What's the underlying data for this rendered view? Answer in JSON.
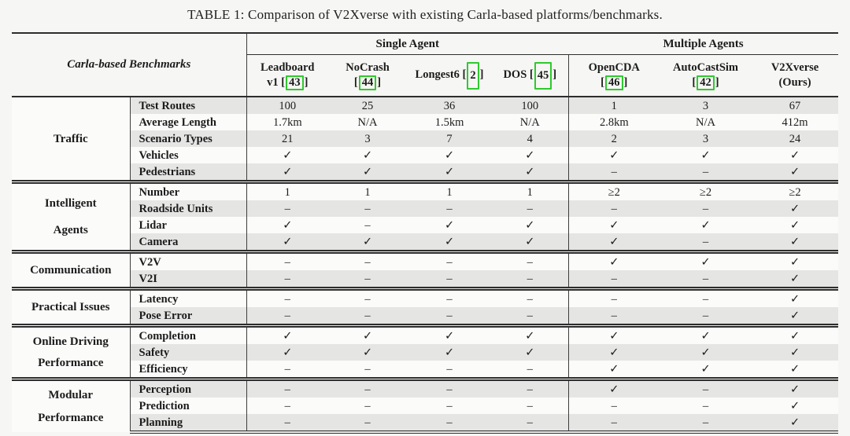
{
  "page": {
    "title": "TABLE 1: Comparison of V2Xverse with existing Carla-based platforms/benchmarks."
  },
  "table": {
    "corner_label": "Carla-based Benchmarks",
    "group_headers": [
      {
        "label": "Single Agent"
      },
      {
        "label": "Multiple Agents"
      }
    ],
    "columns": [
      {
        "line1": "Leadboard",
        "pre": "v1 [",
        "cite": "43",
        "post": "]",
        "tall": false
      },
      {
        "line1": "NoCrash",
        "pre": "[",
        "cite": "44",
        "post": "]",
        "tall": false
      },
      {
        "line1": "",
        "pre": "Longest6 [",
        "cite": "2",
        "post": "]",
        "tall": true
      },
      {
        "line1": "",
        "pre": "DOS [",
        "cite": "45",
        "post": "]",
        "tall": true
      },
      {
        "line1": "OpenCDA",
        "pre": "[",
        "cite": "46",
        "post": "]",
        "tall": false
      },
      {
        "line1": "AutoCastSim",
        "pre": "[",
        "cite": "42",
        "post": "]",
        "tall": false
      },
      {
        "line1": "V2Xverse",
        "pre": "(Ours)",
        "cite": "",
        "post": "",
        "tall": false
      }
    ],
    "sections": [
      {
        "group": [
          "Traffic"
        ],
        "rows": [
          {
            "label": "Test Routes",
            "values": [
              "100",
              "25",
              "36",
              "100",
              "1",
              "3",
              "67"
            ]
          },
          {
            "label": "Average Length",
            "values": [
              "1.7km",
              "N/A",
              "1.5km",
              "N/A",
              "2.8km",
              "N/A",
              "412m"
            ]
          },
          {
            "label": "Scenario Types",
            "values": [
              "21",
              "3",
              "7",
              "4",
              "2",
              "3",
              "24"
            ]
          },
          {
            "label": "Vehicles",
            "values": [
              "✓",
              "✓",
              "✓",
              "✓",
              "✓",
              "✓",
              "✓"
            ]
          },
          {
            "label": "Pedestrians",
            "values": [
              "✓",
              "✓",
              "✓",
              "✓",
              "–",
              "–",
              "✓"
            ]
          }
        ]
      },
      {
        "group": [
          "Intelligent",
          "Agents"
        ],
        "rows": [
          {
            "label": "Number",
            "values": [
              "1",
              "1",
              "1",
              "1",
              "≥2",
              "≥2",
              "≥2"
            ]
          },
          {
            "label": "Roadside Units",
            "values": [
              "–",
              "–",
              "–",
              "–",
              "–",
              "–",
              "✓"
            ]
          },
          {
            "label": "Lidar",
            "values": [
              "✓",
              "–",
              "✓",
              "✓",
              "✓",
              "✓",
              "✓"
            ]
          },
          {
            "label": "Camera",
            "values": [
              "✓",
              "✓",
              "✓",
              "✓",
              "✓",
              "–",
              "✓"
            ]
          }
        ]
      },
      {
        "group": [
          "Communication"
        ],
        "rows": [
          {
            "label": "V2V",
            "values": [
              "–",
              "–",
              "–",
              "–",
              "✓",
              "✓",
              "✓"
            ]
          },
          {
            "label": "V2I",
            "values": [
              "–",
              "–",
              "–",
              "–",
              "–",
              "–",
              "✓"
            ]
          }
        ]
      },
      {
        "group": [
          "Practical Issues"
        ],
        "rows": [
          {
            "label": "Latency",
            "values": [
              "–",
              "–",
              "–",
              "–",
              "–",
              "–",
              "✓"
            ]
          },
          {
            "label": "Pose Error",
            "values": [
              "–",
              "–",
              "–",
              "–",
              "–",
              "–",
              "✓"
            ]
          }
        ]
      },
      {
        "group": [
          "Online Driving",
          "Performance"
        ],
        "rows": [
          {
            "label": "Completion",
            "values": [
              "✓",
              "✓",
              "✓",
              "✓",
              "✓",
              "✓",
              "✓"
            ]
          },
          {
            "label": "Safety",
            "values": [
              "✓",
              "✓",
              "✓",
              "✓",
              "✓",
              "✓",
              "✓"
            ]
          },
          {
            "label": "Efficiency",
            "values": [
              "–",
              "–",
              "–",
              "–",
              "✓",
              "✓",
              "✓"
            ]
          }
        ]
      },
      {
        "group": [
          "Modular",
          "Performance"
        ],
        "rows": [
          {
            "label": "Perception",
            "values": [
              "–",
              "–",
              "–",
              "–",
              "✓",
              "–",
              "✓"
            ]
          },
          {
            "label": "Prediction",
            "values": [
              "–",
              "–",
              "–",
              "–",
              "–",
              "–",
              "✓"
            ]
          },
          {
            "label": "Planning",
            "values": [
              "–",
              "–",
              "–",
              "–",
              "–",
              "–",
              "✓"
            ]
          }
        ]
      }
    ],
    "colors": {
      "stripe": "#e5e5e4",
      "rule": "#2d2d2d",
      "citation_box": "#2fc92f"
    }
  }
}
